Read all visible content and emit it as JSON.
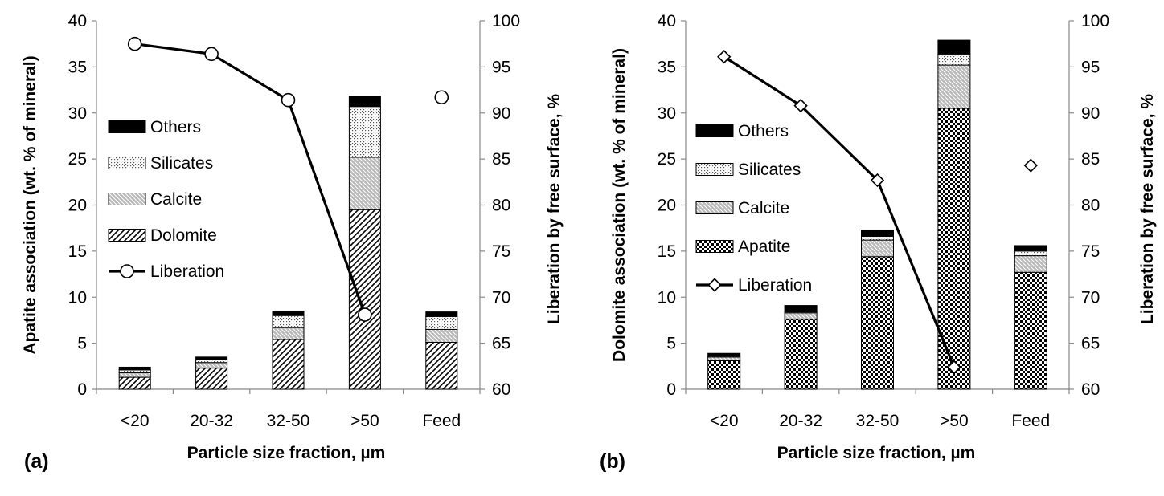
{
  "chart_data": [
    {
      "panel_label": "(a)",
      "type": "bar",
      "stacked": true,
      "categories": [
        "<20",
        "20-32",
        "32-50",
        ">50",
        "Feed"
      ],
      "xlabel": "Particle size fraction, µm",
      "ylabel": "Apatite association (wt. % of mineral)",
      "y2label": "Liberation by free surface, %",
      "ylim": [
        0,
        40
      ],
      "yticks": [
        "0",
        "5",
        "10",
        "15",
        "20",
        "25",
        "30",
        "35",
        "40"
      ],
      "y2lim": [
        60,
        100
      ],
      "y2ticks": [
        "60",
        "65",
        "70",
        "75",
        "80",
        "85",
        "90",
        "95",
        "100"
      ],
      "legend_position": "left",
      "series": [
        {
          "name": "Dolomite",
          "pattern": "diagonal",
          "values": [
            1.3,
            2.3,
            5.4,
            19.5,
            5.1
          ]
        },
        {
          "name": "Calcite",
          "pattern": "crosshatch-grey",
          "values": [
            0.5,
            0.6,
            1.3,
            5.7,
            1.4
          ]
        },
        {
          "name": "Silicates",
          "pattern": "dots",
          "values": [
            0.3,
            0.3,
            1.3,
            5.5,
            1.4
          ]
        },
        {
          "name": "Others",
          "pattern": "solid-black",
          "values": [
            0.3,
            0.3,
            0.5,
            1.1,
            0.5
          ]
        }
      ],
      "line_series": {
        "name": "Liberation",
        "marker": "circle",
        "axis": "right",
        "values": [
          97.5,
          96.4,
          91.4,
          68.1,
          91.7
        ],
        "connected_points": 4
      },
      "legend": [
        "Others",
        "Silicates",
        "Calcite",
        "Dolomite",
        "Liberation"
      ]
    },
    {
      "panel_label": "(b)",
      "type": "bar",
      "stacked": true,
      "categories": [
        "<20",
        "20-32",
        "32-50",
        ">50",
        "Feed"
      ],
      "xlabel": "Particle size fraction, µm",
      "ylabel": "Dolomite association (wt. % of mineral)",
      "y2label": "Liberation by free surface, %",
      "ylim": [
        0,
        40
      ],
      "yticks": [
        "0",
        "5",
        "10",
        "15",
        "20",
        "25",
        "30",
        "35",
        "40"
      ],
      "y2lim": [
        60,
        100
      ],
      "y2ticks": [
        "60",
        "65",
        "70",
        "75",
        "80",
        "85",
        "90",
        "95",
        "100"
      ],
      "legend_position": "left",
      "series": [
        {
          "name": "Apatite",
          "pattern": "checker",
          "values": [
            3.1,
            7.6,
            14.4,
            30.5,
            12.7
          ]
        },
        {
          "name": "Calcite",
          "pattern": "crosshatch-grey",
          "values": [
            0.4,
            0.7,
            1.8,
            4.7,
            1.8
          ]
        },
        {
          "name": "Silicates",
          "pattern": "dots",
          "values": [
            0.1,
            0.1,
            0.4,
            1.2,
            0.5
          ]
        },
        {
          "name": "Others",
          "pattern": "solid-black",
          "values": [
            0.3,
            0.7,
            0.7,
            1.5,
            0.6
          ]
        }
      ],
      "line_series": {
        "name": "Liberation",
        "marker": "diamond",
        "axis": "right",
        "values": [
          96.1,
          90.8,
          82.7,
          62.4,
          84.3
        ],
        "connected_points": 4
      },
      "legend": [
        "Others",
        "Silicates",
        "Calcite",
        "Apatite",
        "Liberation"
      ]
    }
  ]
}
